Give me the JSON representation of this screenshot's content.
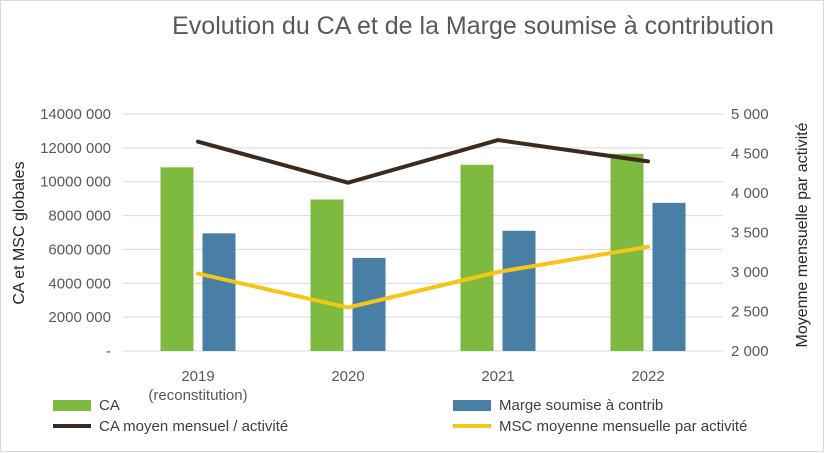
{
  "chart_data": {
    "type": "bar",
    "title": "Evolution du CA et de la Marge soumise à contribution",
    "xlabel": "",
    "ylabel": "CA et MSC globales",
    "y2label": "Moyenne mensuelle par activité",
    "categories": [
      [
        "2019",
        "(reconstitution)"
      ],
      [
        "2020"
      ],
      [
        "2021"
      ],
      [
        "2022"
      ]
    ],
    "ylim": [
      0,
      14000000
    ],
    "y2lim": [
      2000,
      5000
    ],
    "yticks": [
      "-",
      "2000 000",
      "4000 000",
      "6000 000",
      "8000 000",
      "10000 000",
      "12000 000",
      "14000 000"
    ],
    "y2ticks": [
      "2 000",
      "2 500",
      "3 000",
      "3 500",
      "4 000",
      "4 500",
      "5 000"
    ],
    "grid": true,
    "legend_position": "bottom",
    "series": [
      {
        "name": "CA",
        "kind": "bar",
        "axis": "left",
        "color": "#7dba3f",
        "values": [
          10850000,
          8950000,
          11000000,
          11650000
        ]
      },
      {
        "name": "Marge soumise à contrib",
        "kind": "bar",
        "axis": "left",
        "color": "#4a7fa5",
        "values": [
          6950000,
          5500000,
          7100000,
          8750000
        ]
      },
      {
        "name": "CA moyen mensuel / activité",
        "kind": "line",
        "axis": "right",
        "color": "#3a2a20",
        "values": [
          4650,
          4130,
          4670,
          4400
        ]
      },
      {
        "name": "MSC moyenne mensuelle par activité",
        "kind": "line",
        "axis": "right",
        "color": "#f5c518",
        "values": [
          2980,
          2550,
          3000,
          3320
        ]
      }
    ]
  }
}
